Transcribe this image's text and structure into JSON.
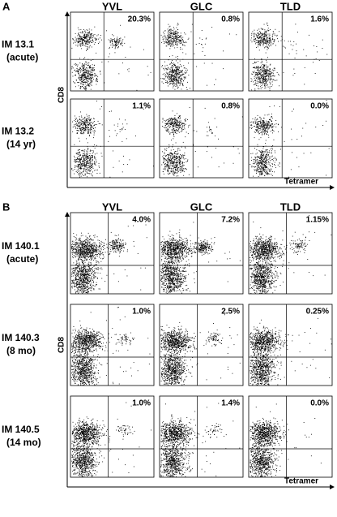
{
  "panels": [
    {
      "label": "A",
      "columns": [
        "YVL",
        "GLC",
        "TLD"
      ],
      "y_axis": "CD8",
      "x_axis": "Tetramer",
      "rows": [
        {
          "label": "IM 13.1",
          "sublabel": "(acute)",
          "values": [
            "20.3%",
            "0.8%",
            "1.6%"
          ]
        },
        {
          "label": "IM 13.2",
          "sublabel": "(14 yr)",
          "values": [
            "1.1%",
            "0.8%",
            "0.0%"
          ]
        }
      ]
    },
    {
      "label": "B",
      "columns": [
        "YVL",
        "GLC",
        "TLD"
      ],
      "y_axis": "CD8",
      "x_axis": "Tetramer",
      "rows": [
        {
          "label": "IM 140.1",
          "sublabel": "(acute)",
          "values": [
            "4.0%",
            "7.2%",
            "1.15%"
          ]
        },
        {
          "label": "IM 140.3",
          "sublabel": "(8 mo)",
          "values": [
            "1.0%",
            "2.5%",
            "0.25%"
          ]
        },
        {
          "label": "IM 140.5",
          "sublabel": "(14 mo)",
          "values": [
            "1.0%",
            "1.4%",
            "0.0%"
          ]
        }
      ]
    }
  ]
}
